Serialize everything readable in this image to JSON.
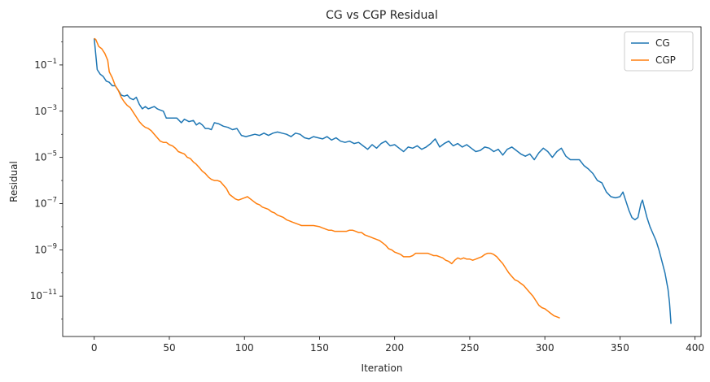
{
  "chart_data": {
    "type": "line",
    "title": "CG vs CGP Residual",
    "xlabel": "Iteration",
    "ylabel": "Residual",
    "yscale": "log",
    "xlim": [
      -21,
      404
    ],
    "ylim_log10": [
      -12.75,
      0.65
    ],
    "grid": false,
    "legend_position": "top-right",
    "x_ticks": [
      0,
      50,
      100,
      150,
      200,
      250,
      300,
      350,
      400
    ],
    "y_ticks": [
      {
        "exp": -11,
        "base": "10",
        "sup": "−11"
      },
      {
        "exp": -9,
        "base": "10",
        "sup": "−9"
      },
      {
        "exp": -7,
        "base": "10",
        "sup": "−7"
      },
      {
        "exp": -5,
        "base": "10",
        "sup": "−5"
      },
      {
        "exp": -3,
        "base": "10",
        "sup": "−3"
      },
      {
        "exp": -1,
        "base": "10",
        "sup": "−1"
      }
    ],
    "series": [
      {
        "name": "CG",
        "color": "#1f77b4",
        "points": [
          [
            0,
            0.15
          ],
          [
            2,
            -1.2
          ],
          [
            4,
            -1.4
          ],
          [
            6,
            -1.5
          ],
          [
            8,
            -1.7
          ],
          [
            10,
            -1.75
          ],
          [
            12,
            -1.9
          ],
          [
            14,
            -1.9
          ],
          [
            16,
            -2.1
          ],
          [
            18,
            -2.3
          ],
          [
            20,
            -2.35
          ],
          [
            22,
            -2.3
          ],
          [
            24,
            -2.45
          ],
          [
            26,
            -2.5
          ],
          [
            28,
            -2.4
          ],
          [
            30,
            -2.7
          ],
          [
            32,
            -2.9
          ],
          [
            34,
            -2.8
          ],
          [
            36,
            -2.9
          ],
          [
            38,
            -2.85
          ],
          [
            40,
            -2.8
          ],
          [
            42,
            -2.9
          ],
          [
            44,
            -2.95
          ],
          [
            46,
            -3.0
          ],
          [
            48,
            -3.3
          ],
          [
            52,
            -3.3
          ],
          [
            55,
            -3.3
          ],
          [
            58,
            -3.5
          ],
          [
            60,
            -3.35
          ],
          [
            63,
            -3.45
          ],
          [
            66,
            -3.4
          ],
          [
            68,
            -3.6
          ],
          [
            70,
            -3.5
          ],
          [
            72,
            -3.6
          ],
          [
            74,
            -3.75
          ],
          [
            76,
            -3.75
          ],
          [
            78,
            -3.8
          ],
          [
            80,
            -3.5
          ],
          [
            83,
            -3.55
          ],
          [
            86,
            -3.65
          ],
          [
            89,
            -3.7
          ],
          [
            92,
            -3.8
          ],
          [
            95,
            -3.75
          ],
          [
            98,
            -4.05
          ],
          [
            101,
            -4.1
          ],
          [
            104,
            -4.05
          ],
          [
            107,
            -4.0
          ],
          [
            110,
            -4.05
          ],
          [
            113,
            -3.95
          ],
          [
            116,
            -4.05
          ],
          [
            119,
            -3.95
          ],
          [
            122,
            -3.9
          ],
          [
            125,
            -3.95
          ],
          [
            128,
            -4.0
          ],
          [
            131,
            -4.1
          ],
          [
            134,
            -3.95
          ],
          [
            137,
            -4.0
          ],
          [
            140,
            -4.15
          ],
          [
            143,
            -4.2
          ],
          [
            146,
            -4.1
          ],
          [
            149,
            -4.15
          ],
          [
            152,
            -4.2
          ],
          [
            155,
            -4.1
          ],
          [
            158,
            -4.25
          ],
          [
            161,
            -4.15
          ],
          [
            164,
            -4.3
          ],
          [
            167,
            -4.35
          ],
          [
            170,
            -4.3
          ],
          [
            173,
            -4.4
          ],
          [
            176,
            -4.35
          ],
          [
            179,
            -4.5
          ],
          [
            182,
            -4.65
          ],
          [
            185,
            -4.45
          ],
          [
            188,
            -4.6
          ],
          [
            191,
            -4.4
          ],
          [
            194,
            -4.3
          ],
          [
            197,
            -4.5
          ],
          [
            200,
            -4.45
          ],
          [
            203,
            -4.6
          ],
          [
            206,
            -4.75
          ],
          [
            209,
            -4.55
          ],
          [
            212,
            -4.6
          ],
          [
            215,
            -4.5
          ],
          [
            218,
            -4.65
          ],
          [
            221,
            -4.55
          ],
          [
            224,
            -4.4
          ],
          [
            227,
            -4.2
          ],
          [
            230,
            -4.55
          ],
          [
            233,
            -4.4
          ],
          [
            236,
            -4.3
          ],
          [
            239,
            -4.5
          ],
          [
            242,
            -4.4
          ],
          [
            245,
            -4.55
          ],
          [
            248,
            -4.45
          ],
          [
            251,
            -4.6
          ],
          [
            254,
            -4.75
          ],
          [
            257,
            -4.7
          ],
          [
            260,
            -4.55
          ],
          [
            263,
            -4.6
          ],
          [
            266,
            -4.75
          ],
          [
            269,
            -4.65
          ],
          [
            272,
            -4.9
          ],
          [
            275,
            -4.65
          ],
          [
            278,
            -4.55
          ],
          [
            281,
            -4.7
          ],
          [
            284,
            -4.85
          ],
          [
            287,
            -4.95
          ],
          [
            290,
            -4.85
          ],
          [
            293,
            -5.1
          ],
          [
            296,
            -4.8
          ],
          [
            299,
            -4.6
          ],
          [
            302,
            -4.75
          ],
          [
            305,
            -5.0
          ],
          [
            308,
            -4.75
          ],
          [
            311,
            -4.6
          ],
          [
            314,
            -4.95
          ],
          [
            317,
            -5.1
          ],
          [
            320,
            -5.1
          ],
          [
            323,
            -5.1
          ],
          [
            326,
            -5.35
          ],
          [
            329,
            -5.5
          ],
          [
            332,
            -5.7
          ],
          [
            335,
            -6.0
          ],
          [
            338,
            -6.1
          ],
          [
            341,
            -6.5
          ],
          [
            344,
            -6.7
          ],
          [
            347,
            -6.75
          ],
          [
            350,
            -6.7
          ],
          [
            352,
            -6.5
          ],
          [
            354,
            -6.9
          ],
          [
            356,
            -7.3
          ],
          [
            358,
            -7.6
          ],
          [
            360,
            -7.7
          ],
          [
            362,
            -7.6
          ],
          [
            364,
            -7.0
          ],
          [
            365,
            -6.85
          ],
          [
            366,
            -7.1
          ],
          [
            368,
            -7.6
          ],
          [
            370,
            -8.0
          ],
          [
            372,
            -8.3
          ],
          [
            374,
            -8.6
          ],
          [
            376,
            -9.0
          ],
          [
            378,
            -9.5
          ],
          [
            380,
            -10.0
          ],
          [
            382,
            -10.7
          ],
          [
            383,
            -11.3
          ],
          [
            384,
            -12.2
          ]
        ]
      },
      {
        "name": "CGP",
        "color": "#ff7f0e",
        "points": [
          [
            0,
            0.15
          ],
          [
            1,
            0.1
          ],
          [
            3,
            -0.2
          ],
          [
            5,
            -0.3
          ],
          [
            7,
            -0.5
          ],
          [
            9,
            -0.8
          ],
          [
            10,
            -1.3
          ],
          [
            12,
            -1.55
          ],
          [
            14,
            -1.9
          ],
          [
            16,
            -2.1
          ],
          [
            18,
            -2.4
          ],
          [
            20,
            -2.6
          ],
          [
            22,
            -2.75
          ],
          [
            24,
            -2.85
          ],
          [
            26,
            -3.05
          ],
          [
            28,
            -3.25
          ],
          [
            30,
            -3.45
          ],
          [
            32,
            -3.6
          ],
          [
            34,
            -3.7
          ],
          [
            36,
            -3.75
          ],
          [
            38,
            -3.85
          ],
          [
            40,
            -4.0
          ],
          [
            42,
            -4.15
          ],
          [
            44,
            -4.3
          ],
          [
            46,
            -4.35
          ],
          [
            48,
            -4.35
          ],
          [
            50,
            -4.45
          ],
          [
            52,
            -4.5
          ],
          [
            54,
            -4.6
          ],
          [
            56,
            -4.75
          ],
          [
            58,
            -4.8
          ],
          [
            60,
            -4.85
          ],
          [
            62,
            -5.0
          ],
          [
            64,
            -5.05
          ],
          [
            66,
            -5.2
          ],
          [
            68,
            -5.3
          ],
          [
            70,
            -5.45
          ],
          [
            72,
            -5.6
          ],
          [
            74,
            -5.7
          ],
          [
            76,
            -5.85
          ],
          [
            78,
            -5.95
          ],
          [
            80,
            -6.0
          ],
          [
            82,
            -6.0
          ],
          [
            84,
            -6.05
          ],
          [
            86,
            -6.2
          ],
          [
            88,
            -6.35
          ],
          [
            90,
            -6.6
          ],
          [
            92,
            -6.7
          ],
          [
            94,
            -6.8
          ],
          [
            96,
            -6.85
          ],
          [
            98,
            -6.8
          ],
          [
            100,
            -6.75
          ],
          [
            102,
            -6.7
          ],
          [
            104,
            -6.8
          ],
          [
            106,
            -6.9
          ],
          [
            108,
            -7.0
          ],
          [
            110,
            -7.05
          ],
          [
            112,
            -7.15
          ],
          [
            114,
            -7.2
          ],
          [
            116,
            -7.25
          ],
          [
            118,
            -7.35
          ],
          [
            120,
            -7.4
          ],
          [
            122,
            -7.5
          ],
          [
            124,
            -7.55
          ],
          [
            126,
            -7.6
          ],
          [
            128,
            -7.7
          ],
          [
            130,
            -7.75
          ],
          [
            132,
            -7.8
          ],
          [
            134,
            -7.85
          ],
          [
            136,
            -7.9
          ],
          [
            138,
            -7.95
          ],
          [
            140,
            -7.95
          ],
          [
            142,
            -7.95
          ],
          [
            146,
            -7.95
          ],
          [
            150,
            -8.0
          ],
          [
            152,
            -8.05
          ],
          [
            154,
            -8.1
          ],
          [
            156,
            -8.15
          ],
          [
            158,
            -8.15
          ],
          [
            160,
            -8.2
          ],
          [
            164,
            -8.2
          ],
          [
            168,
            -8.2
          ],
          [
            170,
            -8.15
          ],
          [
            172,
            -8.15
          ],
          [
            174,
            -8.2
          ],
          [
            176,
            -8.25
          ],
          [
            178,
            -8.25
          ],
          [
            180,
            -8.35
          ],
          [
            182,
            -8.4
          ],
          [
            184,
            -8.45
          ],
          [
            186,
            -8.5
          ],
          [
            188,
            -8.55
          ],
          [
            190,
            -8.6
          ],
          [
            192,
            -8.7
          ],
          [
            194,
            -8.8
          ],
          [
            196,
            -8.95
          ],
          [
            198,
            -9.0
          ],
          [
            200,
            -9.1
          ],
          [
            202,
            -9.15
          ],
          [
            204,
            -9.2
          ],
          [
            206,
            -9.3
          ],
          [
            208,
            -9.3
          ],
          [
            210,
            -9.3
          ],
          [
            212,
            -9.25
          ],
          [
            214,
            -9.15
          ],
          [
            216,
            -9.15
          ],
          [
            218,
            -9.15
          ],
          [
            220,
            -9.15
          ],
          [
            222,
            -9.15
          ],
          [
            224,
            -9.2
          ],
          [
            226,
            -9.25
          ],
          [
            228,
            -9.25
          ],
          [
            230,
            -9.3
          ],
          [
            232,
            -9.35
          ],
          [
            234,
            -9.45
          ],
          [
            236,
            -9.5
          ],
          [
            238,
            -9.6
          ],
          [
            240,
            -9.45
          ],
          [
            242,
            -9.35
          ],
          [
            244,
            -9.4
          ],
          [
            246,
            -9.35
          ],
          [
            248,
            -9.4
          ],
          [
            250,
            -9.4
          ],
          [
            252,
            -9.45
          ],
          [
            254,
            -9.4
          ],
          [
            256,
            -9.35
          ],
          [
            258,
            -9.3
          ],
          [
            260,
            -9.2
          ],
          [
            262,
            -9.15
          ],
          [
            264,
            -9.15
          ],
          [
            266,
            -9.2
          ],
          [
            268,
            -9.3
          ],
          [
            270,
            -9.45
          ],
          [
            272,
            -9.6
          ],
          [
            274,
            -9.8
          ],
          [
            276,
            -10.0
          ],
          [
            278,
            -10.15
          ],
          [
            280,
            -10.3
          ],
          [
            282,
            -10.35
          ],
          [
            284,
            -10.45
          ],
          [
            286,
            -10.55
          ],
          [
            288,
            -10.7
          ],
          [
            290,
            -10.85
          ],
          [
            292,
            -11.0
          ],
          [
            294,
            -11.2
          ],
          [
            296,
            -11.4
          ],
          [
            298,
            -11.5
          ],
          [
            300,
            -11.55
          ],
          [
            302,
            -11.65
          ],
          [
            304,
            -11.75
          ],
          [
            306,
            -11.85
          ],
          [
            308,
            -11.9
          ],
          [
            310,
            -11.95
          ]
        ]
      }
    ]
  }
}
